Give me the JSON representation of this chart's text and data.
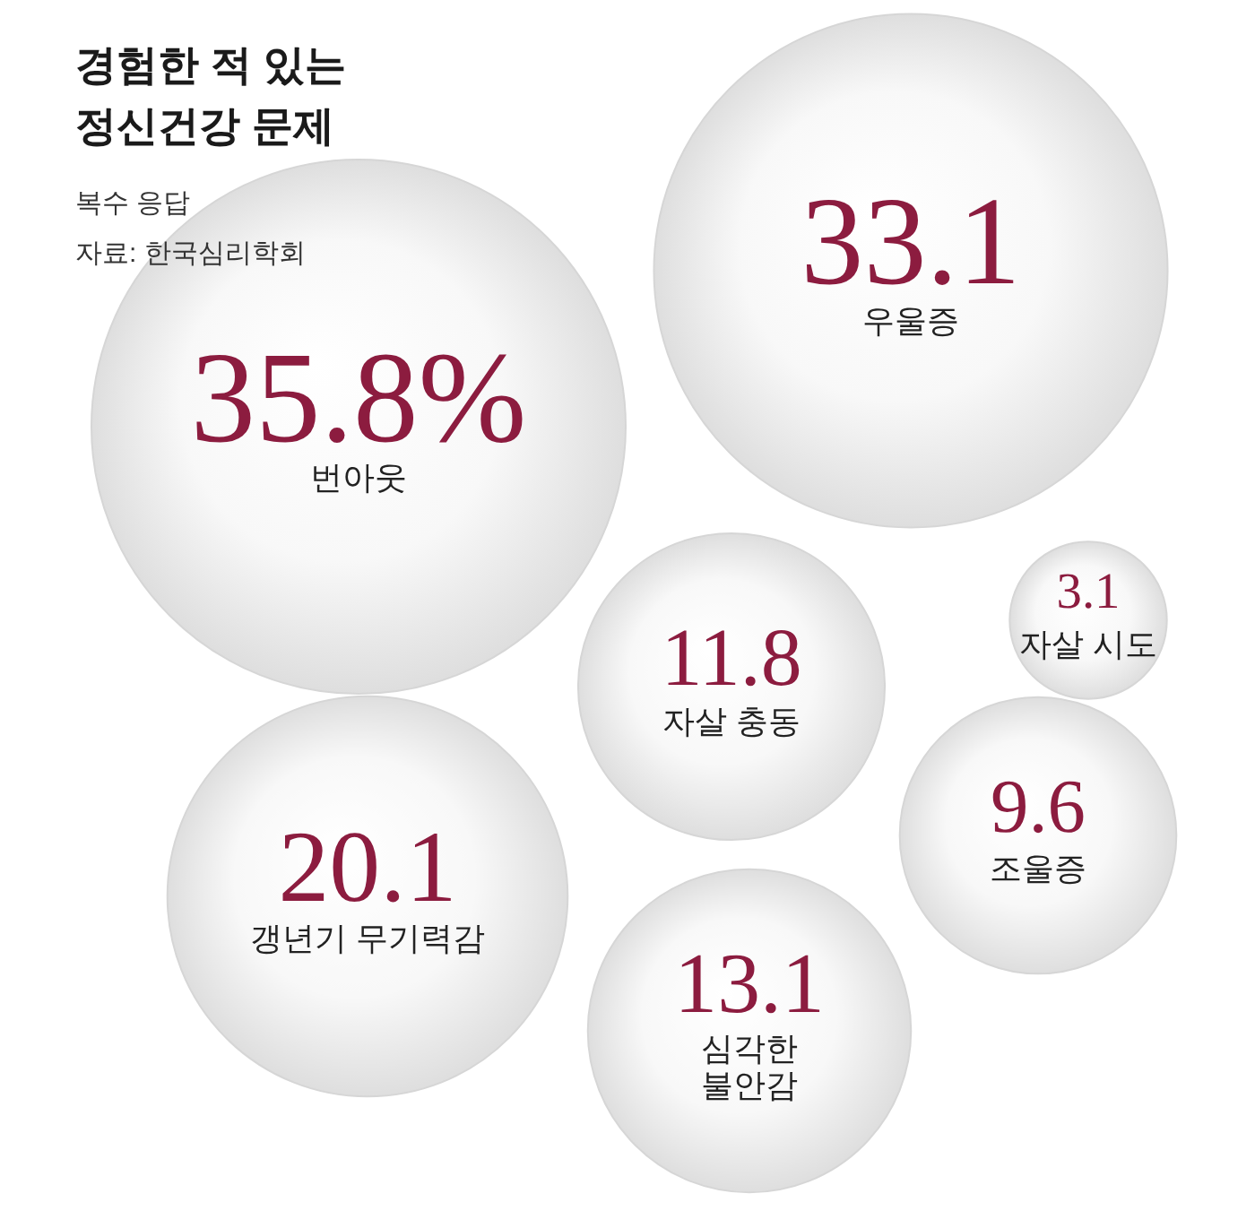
{
  "chart_data": {
    "type": "other",
    "title": "경험한 적 있는\n정신건강 문제",
    "subtitle": "복수 응답",
    "annotations": [
      "자료: 한국심리학회"
    ],
    "categories": [
      "번아웃",
      "우울증",
      "갱년기 무기력감",
      "심각한\n불안감",
      "자살 충동",
      "조울증",
      "자살 시도"
    ],
    "values": [
      35.8,
      33.1,
      20.1,
      13.1,
      11.8,
      9.6,
      3.1
    ],
    "value_labels": [
      "35.8%",
      "33.1",
      "20.1",
      "13.1",
      "11.8",
      "9.6",
      "3.1"
    ]
  }
}
